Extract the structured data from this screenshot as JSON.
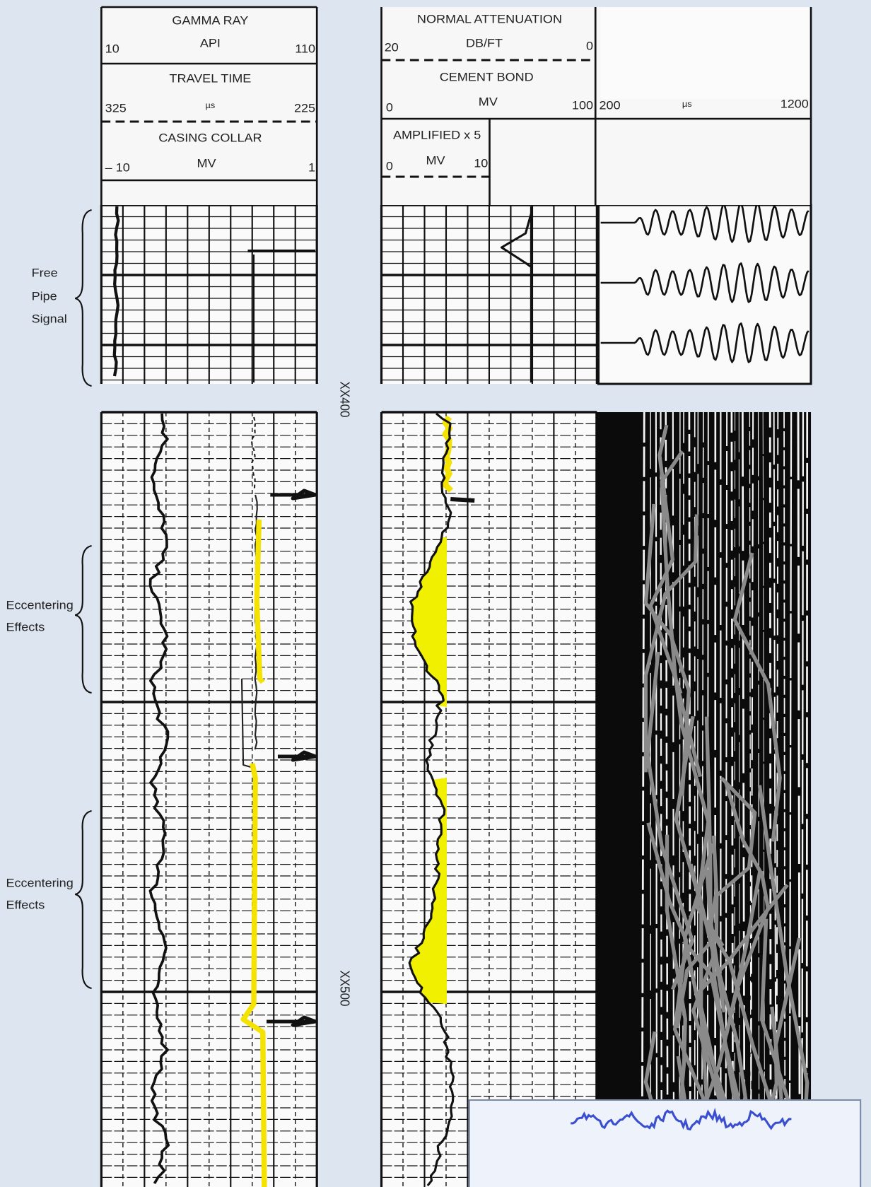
{
  "headers": {
    "gamma_ray": {
      "title": "GAMMA RAY",
      "unit": "API",
      "left": "10",
      "right": "110"
    },
    "travel_time": {
      "title": "TRAVEL TIME",
      "unit": "µs",
      "left": "325",
      "right": "225"
    },
    "casing_collar": {
      "title": "CASING COLLAR",
      "unit": "MV",
      "left": "– 10",
      "right": "1"
    },
    "attenuation": {
      "title": "NORMAL ATTENUATION",
      "unit": "DB/FT",
      "left": "20",
      "right": "0"
    },
    "cement_bond": {
      "title": "CEMENT BOND",
      "unit": "MV",
      "left": "0",
      "right": "100"
    },
    "amplified": {
      "title": "AMPLIFIED x 5",
      "unit": "MV",
      "left": "0",
      "right": "10"
    },
    "vdl": {
      "unit": "µs",
      "left": "200",
      "right": "1200"
    }
  },
  "annotations": [
    [
      "Free",
      "Pipe",
      "Signal"
    ],
    [
      "Eccentering",
      "Effects"
    ],
    [
      "Eccentering",
      "Effects"
    ]
  ],
  "depths": [
    "XX400",
    "XX500"
  ]
}
